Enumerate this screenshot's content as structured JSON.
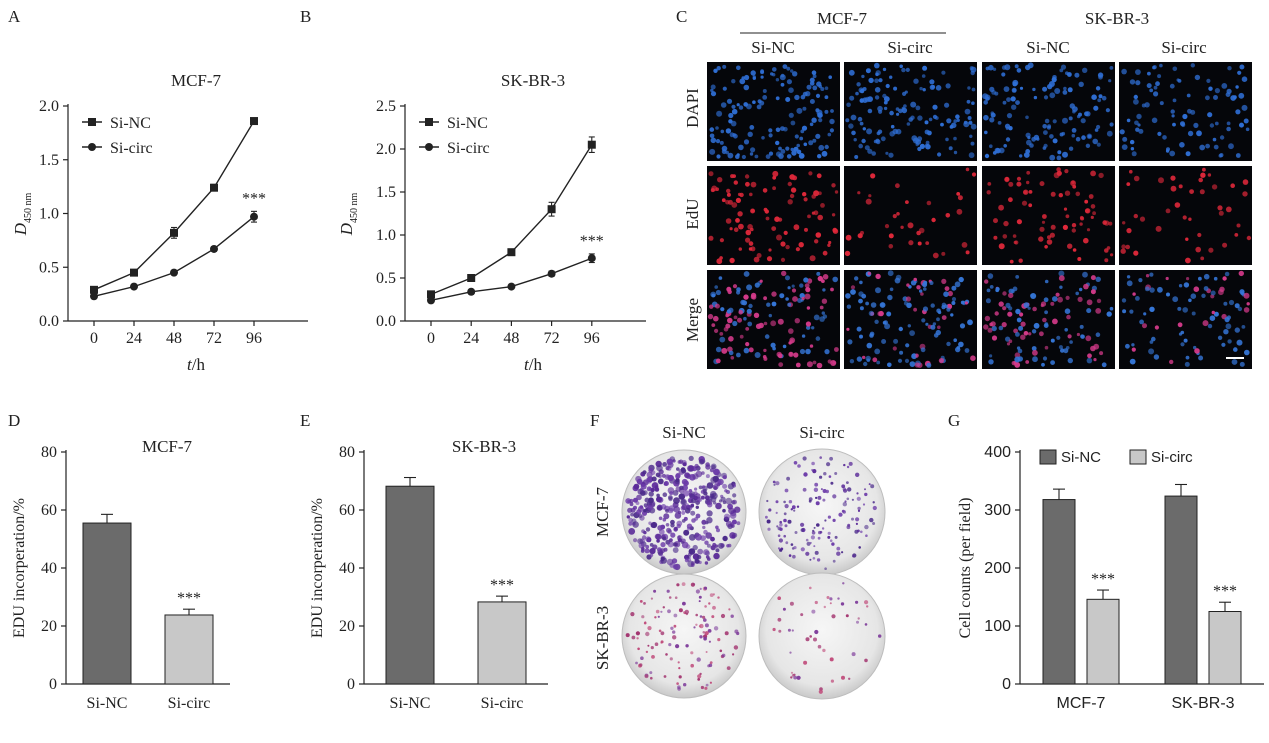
{
  "panel_letters": {
    "A": "A",
    "B": "B",
    "C": "C",
    "D": "D",
    "E": "E",
    "F": "F",
    "G": "G"
  },
  "sig_mark": "***",
  "chart_data": [
    {
      "panel": "A",
      "type": "line",
      "title": "MCF-7",
      "xlabel_italic": "t",
      "xlabel_unit": "/h",
      "ylabel_italic": "D",
      "ylabel_sub": "450 nm",
      "x": [
        0,
        24,
        48,
        72,
        96
      ],
      "xticks": [
        "0",
        "24",
        "48",
        "72",
        "96"
      ],
      "ylim": [
        0,
        2.0
      ],
      "yticks": [
        "0.0",
        "0.5",
        "1.0",
        "1.5",
        "2.0"
      ],
      "legend_position": "top-left",
      "series": [
        {
          "name": "Si-NC",
          "marker": "square",
          "values": [
            0.29,
            0.45,
            0.82,
            1.24,
            1.86
          ],
          "errors": [
            0.03,
            0.02,
            0.05,
            0.03,
            0.02
          ]
        },
        {
          "name": "Si-circ",
          "marker": "circle",
          "values": [
            0.23,
            0.32,
            0.45,
            0.67,
            0.97
          ],
          "errors": [
            0.02,
            0.02,
            0.02,
            0.02,
            0.05
          ]
        }
      ],
      "annotations": [
        {
          "text": "***",
          "series": 1,
          "index": 4
        }
      ]
    },
    {
      "panel": "B",
      "type": "line",
      "title": "SK-BR-3",
      "xlabel_italic": "t",
      "xlabel_unit": "/h",
      "ylabel_italic": "D",
      "ylabel_sub": "450 nm",
      "x": [
        0,
        24,
        48,
        72,
        96
      ],
      "xticks": [
        "0",
        "24",
        "48",
        "72",
        "96"
      ],
      "ylim": [
        0,
        2.5
      ],
      "yticks": [
        "0.0",
        "0.5",
        "1.0",
        "1.5",
        "2.0",
        "2.5"
      ],
      "legend_position": "top-left",
      "series": [
        {
          "name": "Si-NC",
          "marker": "square",
          "values": [
            0.31,
            0.5,
            0.8,
            1.3,
            2.05
          ],
          "errors": [
            0.02,
            0.03,
            0.03,
            0.08,
            0.09
          ]
        },
        {
          "name": "Si-circ",
          "marker": "circle",
          "values": [
            0.24,
            0.34,
            0.4,
            0.55,
            0.73
          ],
          "errors": [
            0.02,
            0.02,
            0.02,
            0.03,
            0.05
          ]
        }
      ],
      "annotations": [
        {
          "text": "***",
          "series": 1,
          "index": 4
        }
      ]
    },
    {
      "panel": "D",
      "type": "bar",
      "title": "MCF-7",
      "ylabel": "EDU incorperation/%",
      "categories": [
        "Si-NC",
        "Si-circ"
      ],
      "values": [
        55.5,
        23.8
      ],
      "errors": [
        3.0,
        2.0
      ],
      "colors": [
        "#6b6b6b",
        "#c8c8c8"
      ],
      "ylim": [
        0,
        80
      ],
      "yticks": [
        "0",
        "20",
        "40",
        "60",
        "80"
      ],
      "annotations": [
        {
          "text": "***",
          "index": 1
        }
      ]
    },
    {
      "panel": "E",
      "type": "bar",
      "title": "SK-BR-3",
      "ylabel": "EDU incorperation/%",
      "categories": [
        "Si-NC",
        "Si-circ"
      ],
      "values": [
        68.2,
        28.3
      ],
      "errors": [
        3.0,
        2.0
      ],
      "colors": [
        "#6b6b6b",
        "#c8c8c8"
      ],
      "ylim": [
        0,
        80
      ],
      "yticks": [
        "0",
        "20",
        "40",
        "60",
        "80"
      ],
      "annotations": [
        {
          "text": "***",
          "index": 1
        }
      ]
    },
    {
      "panel": "G",
      "type": "bar",
      "title": "",
      "ylabel": "Cell counts (per field)",
      "categories": [
        "MCF-7",
        "SK-BR-3"
      ],
      "series": [
        {
          "name": "Si-NC",
          "color": "#6b6b6b",
          "values": [
            318,
            324
          ],
          "errors": [
            18,
            20
          ]
        },
        {
          "name": "Si-circ",
          "color": "#c8c8c8",
          "values": [
            146,
            125
          ],
          "errors": [
            16,
            16
          ]
        }
      ],
      "ylim": [
        0,
        400
      ],
      "yticks": [
        "0",
        "100",
        "200",
        "300",
        "400"
      ],
      "legend_position": "top",
      "annotations": [
        {
          "text": "***",
          "series": 1,
          "index": 0
        },
        {
          "text": "***",
          "series": 1,
          "index": 1
        }
      ]
    }
  ],
  "panel_c": {
    "groups": [
      "MCF-7",
      "SK-BR-3"
    ],
    "columns": [
      "Si-NC",
      "Si-circ",
      "Si-NC",
      "Si-circ"
    ],
    "rows": [
      "DAPI",
      "EdU",
      "Merge"
    ],
    "row_colors": {
      "DAPI": "#2f6fd6",
      "EdU": "#e0283a",
      "Merge": "#b34fd0"
    },
    "density": [
      [
        0.85,
        0.8,
        0.75,
        0.55
      ],
      [
        0.55,
        0.2,
        0.45,
        0.25
      ],
      [
        0.85,
        0.8,
        0.75,
        0.55
      ]
    ]
  },
  "panel_f": {
    "columns": [
      "Si-NC",
      "Si-circ"
    ],
    "rows": [
      "MCF-7",
      "SK-BR-3"
    ],
    "density": [
      [
        0.9,
        0.35
      ],
      [
        0.3,
        0.12
      ]
    ]
  }
}
